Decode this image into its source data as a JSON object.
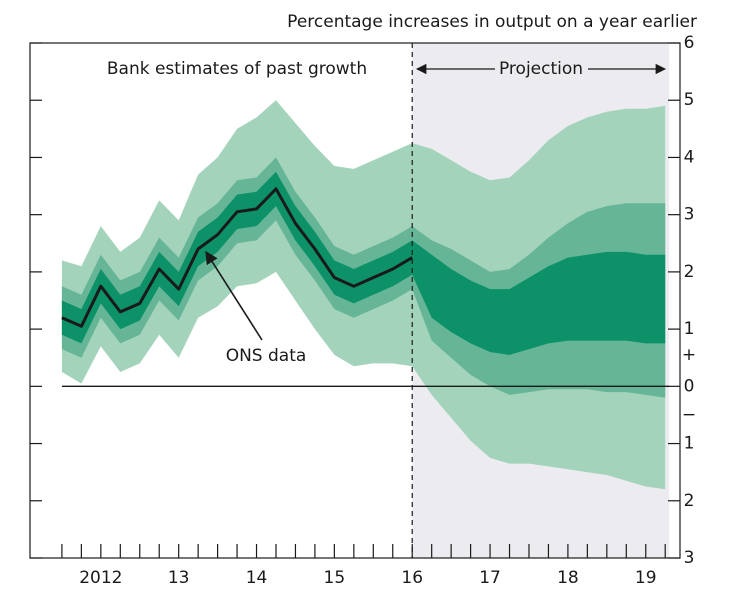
{
  "chart_data": {
    "type": "fan",
    "axis_title": "Percentage increases in output on a year earlier",
    "annotations": {
      "past": "Bank estimates of past growth",
      "projection": "Projection",
      "ons": "ONS data",
      "plus": "+",
      "minus": "−"
    },
    "xlim": [
      2011.59,
      2019.94
    ],
    "ylim": [
      -3,
      6
    ],
    "yticks": [
      {
        "value": -3,
        "label": "3"
      },
      {
        "value": -2,
        "label": "2"
      },
      {
        "value": -1,
        "label": "1"
      },
      0,
      1,
      2,
      3,
      4,
      5,
      6
    ],
    "xticks": [
      {
        "value": 2012.5,
        "label": "2012"
      },
      {
        "value": 2013.5,
        "label": "13"
      },
      {
        "value": 2014.5,
        "label": "14"
      },
      {
        "value": 2015.5,
        "label": "15"
      },
      {
        "value": 2016.5,
        "label": "16"
      },
      {
        "value": 2017.5,
        "label": "17"
      },
      {
        "value": 2018.5,
        "label": "18"
      },
      {
        "value": 2019.5,
        "label": "19"
      }
    ],
    "xminor_ticks": [
      2012,
      2012.25,
      2012.5,
      2012.75,
      2013,
      2013.25,
      2013.5,
      2013.75,
      2014,
      2014.25,
      2014.5,
      2014.75,
      2015,
      2015.25,
      2015.5,
      2015.75,
      2016,
      2016.25,
      2016.5,
      2016.75,
      2017,
      2017.25,
      2017.5,
      2017.75,
      2018,
      2018.25,
      2018.5,
      2018.75,
      2019,
      2019.25,
      2019.5,
      2019.75
    ],
    "hline": 0,
    "projection_start": 2016.5,
    "projection_color": "#ebebf0",
    "x": [
      2012,
      2012.25,
      2012.5,
      2012.75,
      2013,
      2013.25,
      2013.5,
      2013.75,
      2014,
      2014.25,
      2014.5,
      2014.75,
      2015,
      2015.25,
      2015.5,
      2015.75,
      2016,
      2016.25,
      2016.5,
      2016.75,
      2017,
      2017.25,
      2017.5,
      2017.75,
      2018,
      2018.25,
      2018.5,
      2018.75,
      2019,
      2019.25,
      2019.5,
      2019.75
    ],
    "bands": [
      {
        "color": "#a3d3bb",
        "upper": [
          2.2,
          2.1,
          2.8,
          2.35,
          2.6,
          3.25,
          2.9,
          3.7,
          4.0,
          4.5,
          4.7,
          5.0,
          4.6,
          4.2,
          3.85,
          3.8,
          3.95,
          4.1,
          4.25,
          4.15,
          3.95,
          3.75,
          3.6,
          3.65,
          3.95,
          4.3,
          4.55,
          4.7,
          4.8,
          4.85,
          4.85,
          4.9
        ],
        "lower": [
          0.25,
          0.05,
          0.7,
          0.25,
          0.4,
          0.9,
          0.5,
          1.2,
          1.4,
          1.75,
          1.8,
          2.0,
          1.5,
          1.0,
          0.55,
          0.35,
          0.4,
          0.4,
          0.35,
          -0.15,
          -0.55,
          -0.95,
          -1.25,
          -1.35,
          -1.35,
          -1.4,
          -1.45,
          -1.5,
          -1.55,
          -1.65,
          -1.75,
          -1.8
        ]
      },
      {
        "color": "#66b596",
        "upper": [
          1.75,
          1.6,
          2.3,
          1.85,
          2.0,
          2.6,
          2.25,
          2.95,
          3.2,
          3.6,
          3.65,
          4.0,
          3.4,
          2.95,
          2.45,
          2.3,
          2.45,
          2.6,
          2.8,
          2.55,
          2.4,
          2.2,
          2.0,
          2.05,
          2.3,
          2.6,
          2.85,
          3.05,
          3.15,
          3.2,
          3.2,
          3.2
        ],
        "lower": [
          0.65,
          0.5,
          1.2,
          0.75,
          0.9,
          1.5,
          1.15,
          1.85,
          2.1,
          2.5,
          2.55,
          2.9,
          2.3,
          1.85,
          1.35,
          1.2,
          1.35,
          1.5,
          1.7,
          0.8,
          0.5,
          0.2,
          0.0,
          -0.15,
          -0.1,
          -0.05,
          -0.05,
          -0.05,
          -0.1,
          -0.1,
          -0.15,
          -0.2
        ]
      },
      {
        "color": "#0d9168",
        "upper": [
          1.5,
          1.35,
          2.05,
          1.6,
          1.75,
          2.35,
          2.0,
          2.7,
          2.95,
          3.35,
          3.4,
          3.75,
          3.15,
          2.7,
          2.2,
          2.05,
          2.2,
          2.35,
          2.55,
          2.3,
          2.05,
          1.85,
          1.7,
          1.7,
          1.9,
          2.1,
          2.25,
          2.3,
          2.35,
          2.35,
          2.3,
          2.3
        ],
        "lower": [
          0.9,
          0.75,
          1.45,
          1.0,
          1.15,
          1.75,
          1.4,
          2.1,
          2.35,
          2.75,
          2.8,
          3.15,
          2.55,
          2.1,
          1.6,
          1.45,
          1.6,
          1.75,
          1.95,
          1.2,
          0.95,
          0.75,
          0.6,
          0.55,
          0.65,
          0.75,
          0.8,
          0.8,
          0.8,
          0.8,
          0.75,
          0.75
        ]
      }
    ],
    "line": {
      "color": "#1a1a1a",
      "values": [
        1.2,
        1.05,
        1.75,
        1.3,
        1.45,
        2.05,
        1.7,
        2.4,
        2.65,
        3.05,
        3.1,
        3.45,
        2.85,
        2.4,
        1.9,
        1.75,
        1.9,
        2.05,
        2.25,
        null,
        null,
        null,
        null,
        null,
        null,
        null,
        null,
        null,
        null,
        null,
        null,
        null
      ]
    }
  }
}
